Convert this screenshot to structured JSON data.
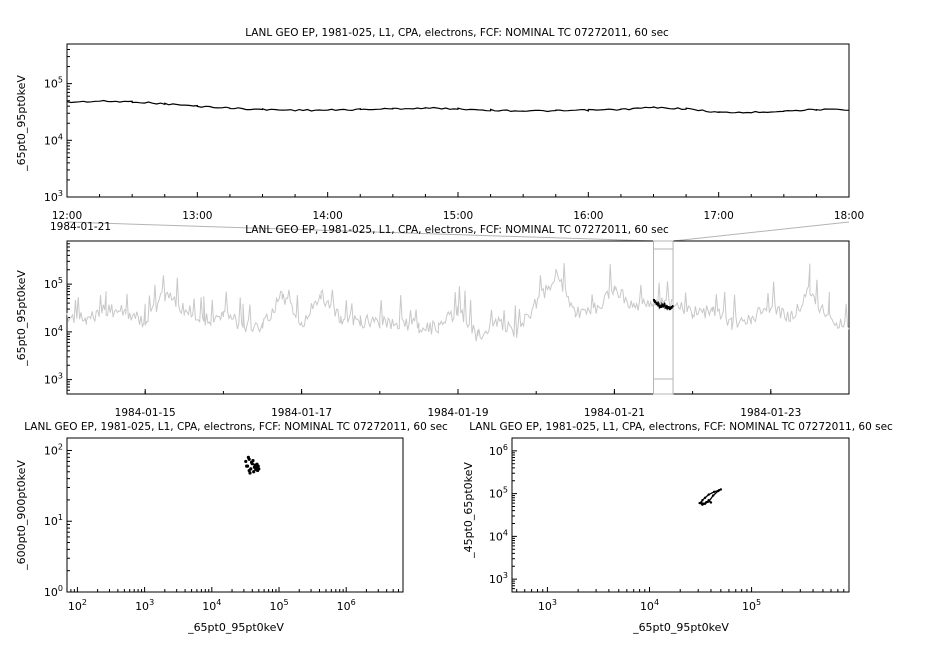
{
  "chart_data": [
    {
      "type": "line",
      "title": "LANL GEO EP, 1981-025, L1, CPA, electrons, FCF: NOMINAL TC 07272011, 60 sec",
      "xlabel": "",
      "ylabel": "_65pt0_95pt0keV",
      "yscale": "log",
      "ylim": [
        1000,
        500000
      ],
      "xlim": [
        "1984-01-21 12:00",
        "1984-01-21 18:00"
      ],
      "x_ticks": [
        "12:00",
        "13:00",
        "14:00",
        "15:00",
        "16:00",
        "17:00",
        "18:00"
      ],
      "x_date_label": "1984-01-21",
      "y_ticks": [
        1000,
        10000,
        100000
      ],
      "grid": false,
      "series": [
        {
          "color": "#000000",
          "x": [
            "12:00",
            "12:15",
            "12:30",
            "12:45",
            "13:00",
            "13:15",
            "13:30",
            "13:45",
            "14:00",
            "14:15",
            "14:30",
            "14:45",
            "15:00",
            "15:15",
            "15:30",
            "15:45",
            "16:00",
            "16:15",
            "16:30",
            "16:45",
            "17:00",
            "17:15",
            "17:30",
            "17:45",
            "18:00"
          ],
          "y": [
            47000,
            49000,
            48000,
            44000,
            40000,
            37000,
            35000,
            34000,
            34000,
            35000,
            36000,
            37000,
            36000,
            34000,
            33000,
            33000,
            34000,
            35000,
            38000,
            36000,
            31000,
            31000,
            33000,
            35000,
            34000
          ]
        }
      ]
    },
    {
      "type": "line",
      "title": "LANL GEO EP, 1981-025, L1, CPA, electrons, FCF: NOMINAL TC 07272011, 60 sec",
      "xlabel": "",
      "ylabel": "_65pt0_95pt0keV",
      "yscale": "log",
      "ylim": [
        500,
        800000
      ],
      "xlim": [
        "1984-01-14",
        "1984-01-24"
      ],
      "x_ticks": [
        "1984-01-15",
        "1984-01-17",
        "1984-01-19",
        "1984-01-21",
        "1984-01-23"
      ],
      "y_ticks": [
        1000,
        10000,
        100000
      ],
      "grid": false,
      "highlight_range": [
        "1984-01-21 12:00",
        "1984-01-21 18:00"
      ],
      "series": [
        {
          "color": "#c8c8c8",
          "x": [
            "01-14 00:00",
            "01-14 06:00",
            "01-14 12:00",
            "01-14 18:00",
            "01-15 00:00",
            "01-15 06:00",
            "01-15 12:00",
            "01-15 18:00",
            "01-16 00:00",
            "01-16 06:00",
            "01-16 12:00",
            "01-16 18:00",
            "01-17 00:00",
            "01-17 06:00",
            "01-17 12:00",
            "01-17 18:00",
            "01-18 00:00",
            "01-18 06:00",
            "01-18 12:00",
            "01-18 18:00",
            "01-19 00:00",
            "01-19 06:00",
            "01-19 12:00",
            "01-19 18:00",
            "01-20 00:00",
            "01-20 06:00",
            "01-20 12:00",
            "01-20 18:00",
            "01-21 00:00",
            "01-21 06:00",
            "01-21 12:00",
            "01-21 18:00",
            "01-22 00:00",
            "01-22 06:00",
            "01-22 12:00",
            "01-22 18:00",
            "01-23 00:00",
            "01-23 06:00",
            "01-23 12:00",
            "01-23 18:00",
            "01-24 00:00"
          ],
          "y": [
            20000,
            18000,
            30000,
            25000,
            16000,
            60000,
            30000,
            18000,
            22000,
            14000,
            13000,
            60000,
            15000,
            60000,
            20000,
            17000,
            16000,
            15000,
            13000,
            12000,
            30000,
            8000,
            15000,
            10000,
            40000,
            150000,
            25000,
            30000,
            80000,
            35000,
            35000,
            40000,
            25000,
            28000,
            15000,
            20000,
            30000,
            20000,
            70000,
            18000,
            14000
          ]
        },
        {
          "color": "#000000",
          "x": [
            "01-21 12:00",
            "01-21 13:00",
            "01-21 14:00",
            "01-21 15:00",
            "01-21 16:00",
            "01-21 17:00",
            "01-21 18:00"
          ],
          "y": [
            47000,
            40000,
            34000,
            36000,
            34000,
            31000,
            34000
          ]
        }
      ]
    },
    {
      "type": "scatter",
      "title": "LANL GEO EP, 1981-025, L1, CPA, electrons, FCF: NOMINAL TC 07272011, 60 sec",
      "xlabel": "_65pt0_95pt0keV",
      "ylabel": "_600pt0_900pt0keV",
      "xscale": "log",
      "yscale": "log",
      "xlim": [
        70,
        7000000
      ],
      "ylim": [
        1,
        150
      ],
      "x_ticks": [
        100,
        1000,
        10000,
        100000,
        1000000
      ],
      "y_ticks": [
        1,
        10,
        100
      ],
      "grid": false,
      "series": [
        {
          "color": "#000000",
          "x": [
            32000,
            34000,
            36000,
            38000,
            40000,
            42000,
            44000,
            46000,
            48000,
            50000,
            35000,
            37000,
            39000,
            41000,
            33000,
            45000,
            47000,
            43000,
            36000,
            49000
          ],
          "y": [
            70,
            60,
            75,
            55,
            65,
            50,
            62,
            58,
            52,
            55,
            80,
            48,
            68,
            72,
            60,
            54,
            64,
            58,
            52,
            60
          ]
        }
      ]
    },
    {
      "type": "scatter",
      "title": "LANL GEO EP, 1981-025, L1, CPA, electrons, FCF: NOMINAL TC 07272011, 60 sec",
      "xlabel": "_65pt0_95pt0keV",
      "ylabel": "_45pt0_65pt0keV",
      "xscale": "log",
      "yscale": "log",
      "xlim": [
        450,
        900000
      ],
      "ylim": [
        500,
        2000000
      ],
      "x_ticks": [
        1000,
        10000,
        100000
      ],
      "y_ticks": [
        1000,
        10000,
        100000,
        1000000
      ],
      "grid": false,
      "series": [
        {
          "color": "#000000",
          "x": [
            31000,
            33000,
            35000,
            38000,
            42000,
            47000,
            50000,
            48000,
            43000,
            38000,
            35000,
            33000,
            32000,
            34000,
            36000,
            38000,
            40000
          ],
          "y": [
            60000,
            55000,
            58000,
            65000,
            90000,
            115000,
            125000,
            120000,
            110000,
            95000,
            80000,
            70000,
            62000,
            58000,
            63000,
            70000,
            62000
          ]
        }
      ]
    }
  ]
}
